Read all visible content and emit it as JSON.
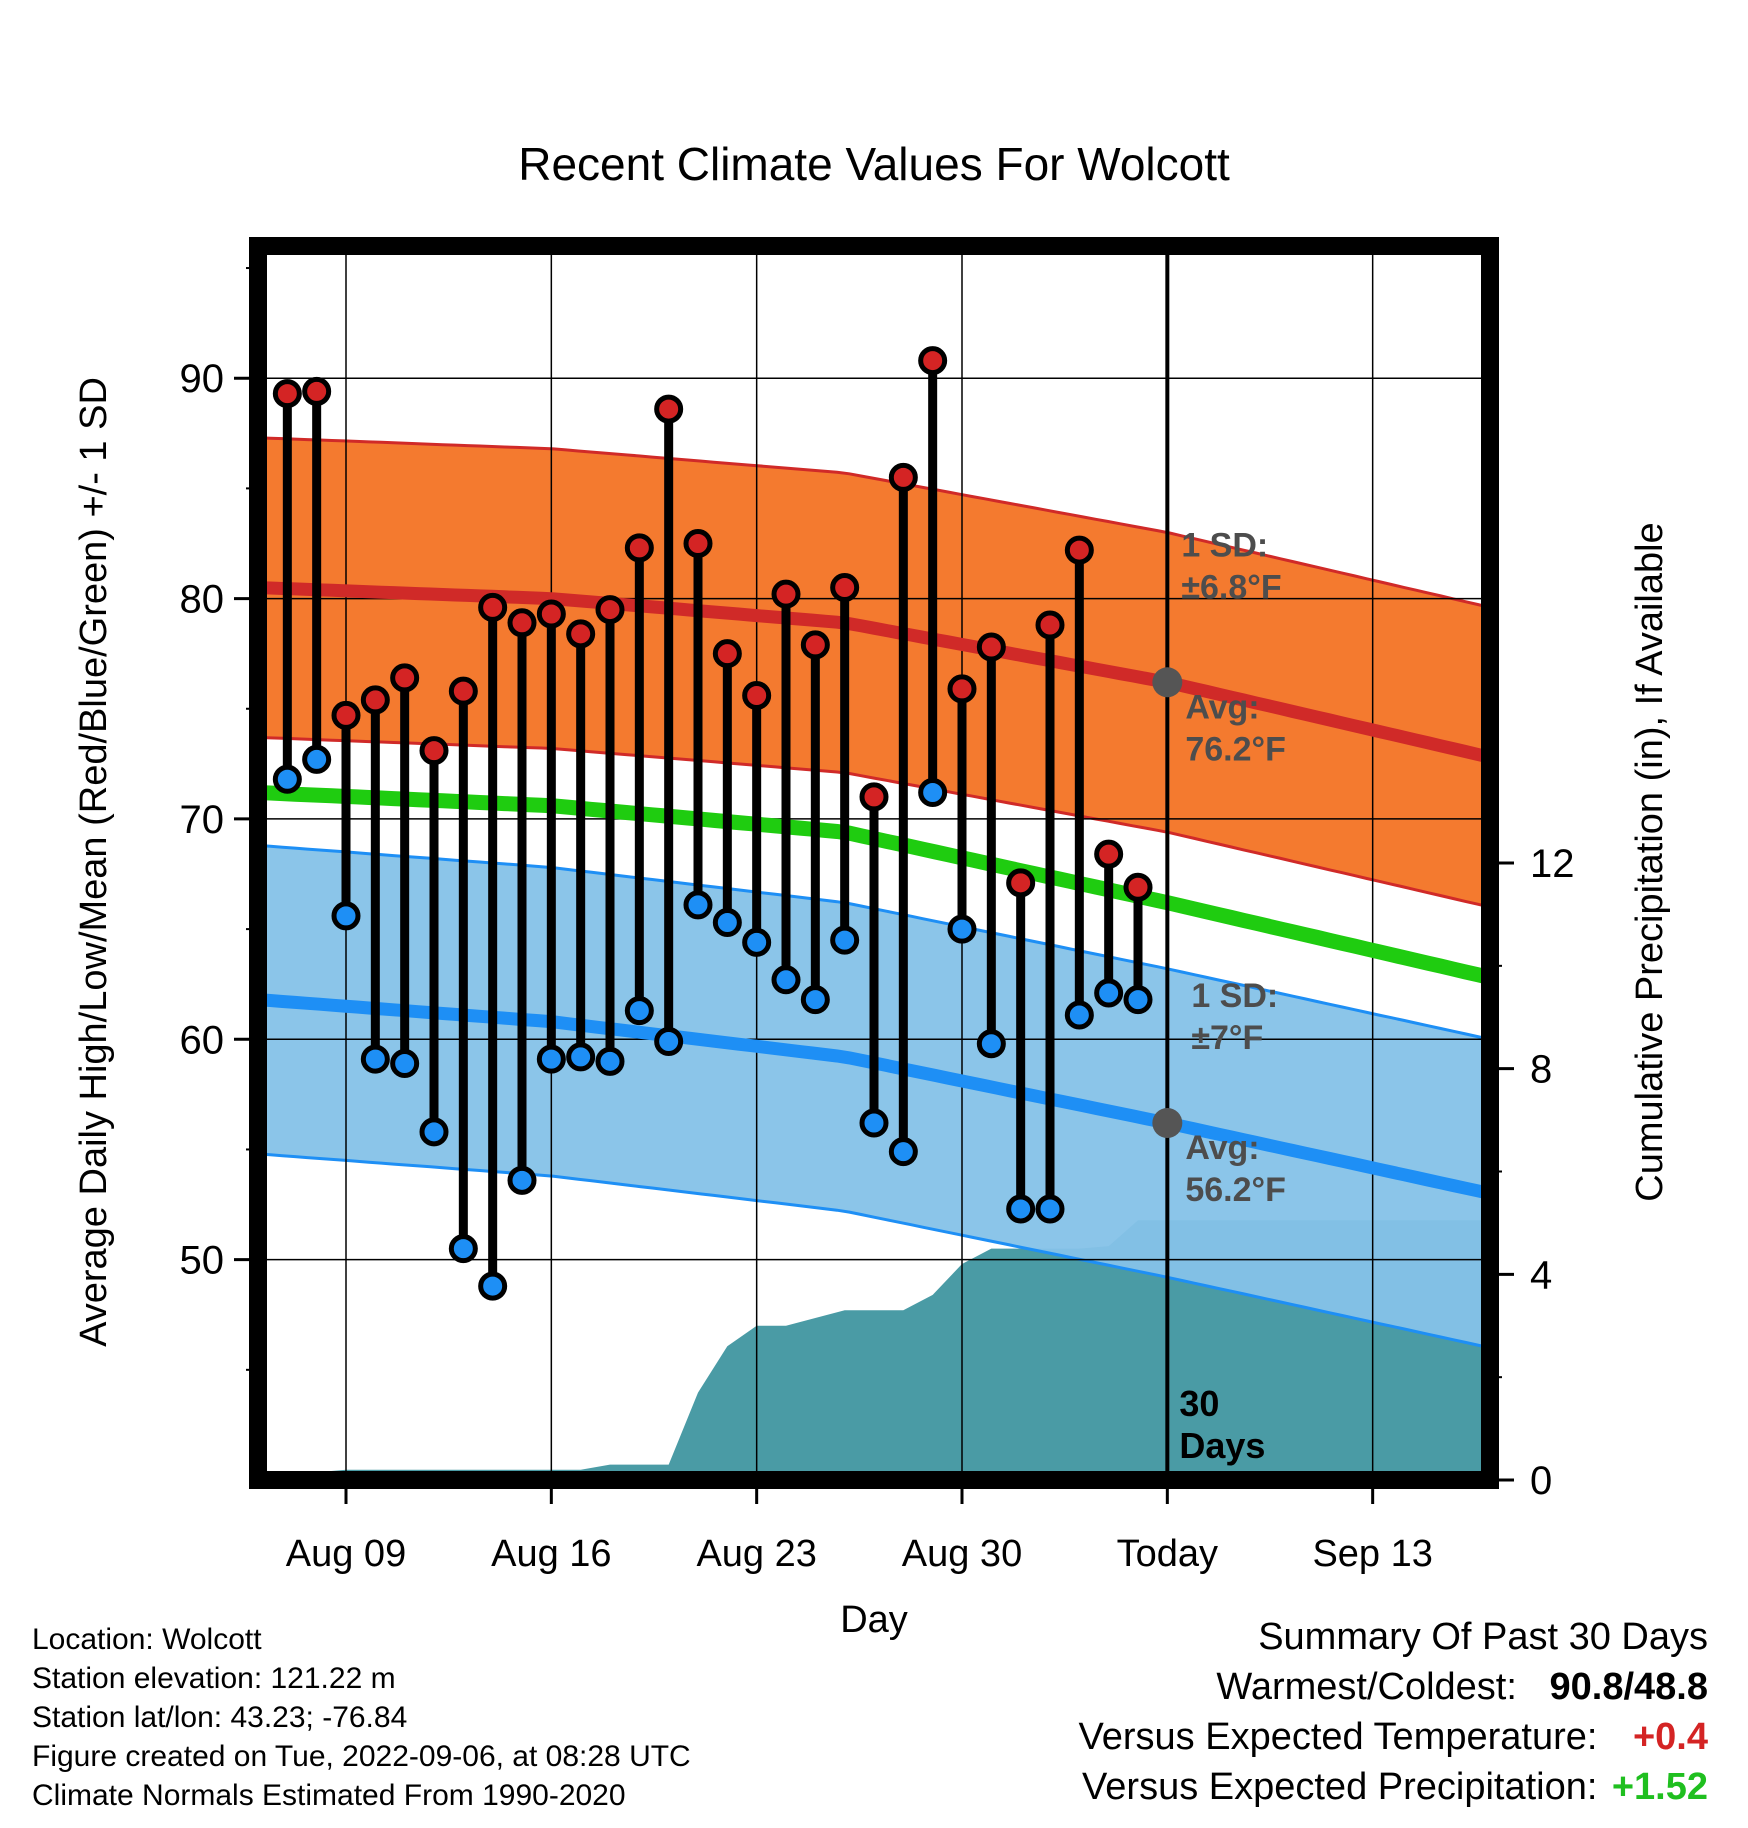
{
  "chart_data": {
    "type": "line",
    "title": "Recent Climate Values For Wolcott",
    "xlabel": "Day",
    "ylabel": "Average Daily High/Low/Mean (Red/Blue/Green) +/- 1 SD",
    "y2label": "Cumulative Precipitation (in), If Available",
    "ylim": [
      40,
      96
    ],
    "y2lim": [
      0,
      24
    ],
    "yticks": [
      50,
      60,
      70,
      80,
      90
    ],
    "y2ticks": [
      0,
      4,
      8,
      12
    ],
    "x_range": [
      "Aug 06",
      "Sep 17"
    ],
    "xticks": [
      {
        "date": "Aug 09",
        "label": "Aug 09"
      },
      {
        "date": "Aug 16",
        "label": "Aug 16"
      },
      {
        "date": "Aug 23",
        "label": "Aug 23"
      },
      {
        "date": "Aug 30",
        "label": "Aug 30"
      },
      {
        "date": "Sep 06",
        "label": "Today"
      },
      {
        "date": "Sep 13",
        "label": "Sep 13"
      }
    ],
    "today_date": "Sep 06",
    "today_label": [
      "30",
      "Days"
    ],
    "grid": true,
    "dates": [
      "Aug 07",
      "Aug 08",
      "Aug 09",
      "Aug 10",
      "Aug 11",
      "Aug 12",
      "Aug 13",
      "Aug 14",
      "Aug 15",
      "Aug 16",
      "Aug 17",
      "Aug 18",
      "Aug 19",
      "Aug 20",
      "Aug 21",
      "Aug 22",
      "Aug 23",
      "Aug 24",
      "Aug 25",
      "Aug 26",
      "Aug 27",
      "Aug 28",
      "Aug 29",
      "Aug 30",
      "Aug 31",
      "Sep 01",
      "Sep 02",
      "Sep 03",
      "Sep 04",
      "Sep 05"
    ],
    "highs": [
      89.3,
      89.4,
      74.7,
      75.4,
      76.4,
      73.1,
      75.8,
      79.6,
      78.9,
      79.3,
      78.4,
      79.5,
      82.3,
      88.6,
      82.5,
      77.5,
      75.6,
      80.2,
      77.9,
      80.5,
      71.0,
      85.5,
      90.8,
      75.9,
      77.8,
      67.1,
      78.8,
      82.2,
      68.4,
      66.9
    ],
    "lows": [
      71.8,
      72.7,
      65.6,
      59.1,
      58.9,
      55.8,
      50.5,
      48.8,
      53.6,
      59.1,
      59.2,
      59.0,
      61.3,
      59.9,
      66.1,
      65.3,
      64.4,
      62.7,
      61.8,
      64.5,
      56.2,
      54.9,
      71.2,
      65.0,
      59.8,
      52.3,
      52.3,
      61.1,
      62.1,
      61.8
    ],
    "normal_dates": [
      "Aug 06",
      "Aug 16",
      "Aug 26",
      "Sep 06",
      "Sep 17"
    ],
    "normal_high": [
      80.5,
      80.0,
      78.9,
      76.2,
      72.8
    ],
    "normal_mean": [
      71.2,
      70.6,
      69.4,
      66.2,
      62.8
    ],
    "normal_low": [
      61.8,
      60.8,
      59.2,
      56.2,
      53.0
    ],
    "high_sd": 6.8,
    "low_sd": 7.0,
    "annotations": {
      "high_sd": [
        "1 SD:",
        "±6.8°F"
      ],
      "high_avg": [
        "Avg:",
        "76.2°F"
      ],
      "low_sd": [
        "1 SD:",
        "±7°F"
      ],
      "low_avg": [
        "Avg:",
        "56.2°F"
      ]
    },
    "precip_dates": [
      "Aug 06",
      "Aug 07",
      "Aug 08",
      "Aug 09",
      "Aug 13",
      "Aug 17",
      "Aug 18",
      "Aug 19",
      "Aug 20",
      "Aug 21",
      "Aug 22",
      "Aug 23",
      "Aug 24",
      "Aug 25",
      "Aug 26",
      "Aug 27",
      "Aug 28",
      "Aug 29",
      "Aug 30",
      "Aug 31",
      "Sep 01",
      "Sep 02",
      "Sep 03",
      "Sep 04",
      "Sep 05",
      "Sep 17"
    ],
    "precip_cum": [
      0.0,
      0.0,
      0.15,
      0.2,
      0.2,
      0.2,
      0.3,
      0.3,
      0.3,
      1.7,
      2.6,
      3.0,
      3.0,
      3.15,
      3.3,
      3.3,
      3.3,
      3.6,
      4.2,
      4.5,
      4.5,
      4.5,
      4.5,
      4.55,
      5.05,
      5.05
    ],
    "colors": {
      "high_band": "#f47a2f",
      "high_line": "#d02a28",
      "mean_line": "#1fcc10",
      "low_band": "#85c2e8",
      "low_line": "#1e8ff5",
      "precip": "#4a9ba5",
      "high_dot": "#d42424",
      "low_dot": "#1e8ff5",
      "annotation": "#4d4d4d"
    }
  },
  "info": {
    "location": "Location: Wolcott",
    "elevation": "Station elevation: 121.22 m",
    "latlon": "Station lat/lon: 43.23; -76.84",
    "created": "Figure created on Tue, 2022-09-06, at 08:28 UTC",
    "normals": "Climate Normals Estimated From 1990-2020"
  },
  "summary": {
    "title": "Summary Of Past 30 Days",
    "warmest_coldest_label": "Warmest/Coldest:",
    "warmest": "90.8",
    "slash": "/",
    "coldest": "48.8",
    "temp_label": "Versus Expected Temperature:",
    "temp_value": "+0.4",
    "precip_label": "Versus Expected Precipitation:",
    "precip_value": "+1.52"
  }
}
